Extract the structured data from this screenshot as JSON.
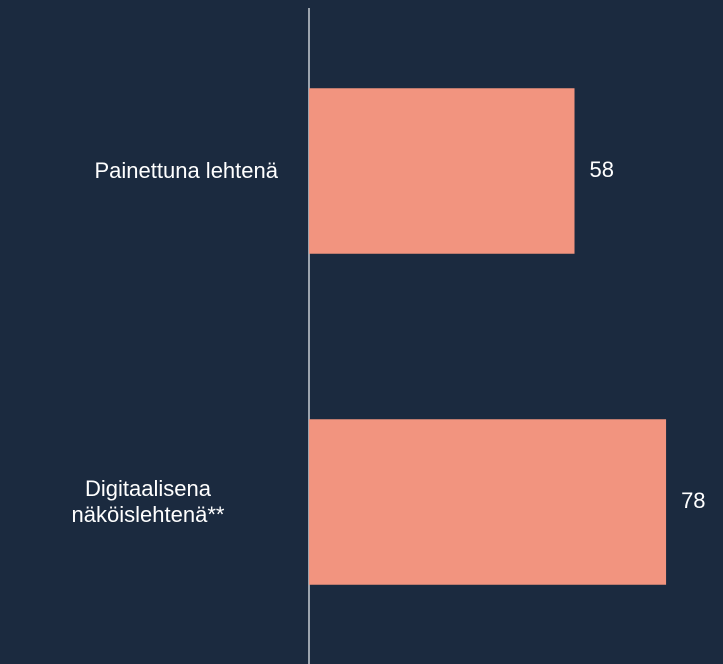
{
  "chart_data": {
    "type": "hbar",
    "categories": [
      "Painettuna lehtenä",
      "Digitaalisena näköislehtenä**"
    ],
    "values": [
      58,
      78
    ],
    "color": "#f2947f",
    "xlim": [
      0,
      90
    ]
  }
}
